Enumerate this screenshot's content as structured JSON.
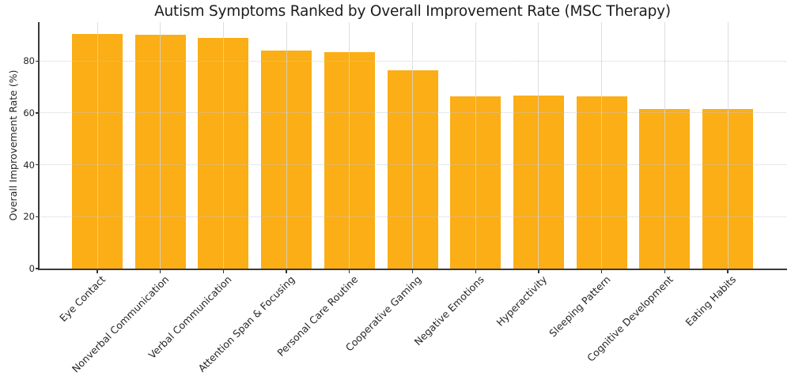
{
  "title": "Autism Symptoms Ranked by Overall Improvement Rate (MSC Therapy)",
  "y_axis_label": "Overall Improvement Rate (%)",
  "colors": {
    "bar": "#fbae15",
    "spine": "#3a3a3a",
    "grid_horizontal": "#c9c9c9",
    "grid_vertical": "#d6d6d6",
    "title_text": "#1c1c1c",
    "tick_text": "#262626",
    "background": "#ffffff"
  },
  "chart_data": {
    "type": "bar",
    "title": "Autism Symptoms Ranked by Overall Improvement Rate (MSC Therapy)",
    "xlabel": "",
    "ylabel": "Overall Improvement Rate (%)",
    "categories": [
      "Eye Contact",
      "Nonverbal Communication",
      "Verbal Communication",
      "Attention Span & Focusing",
      "Personal Care Routine",
      "Cooperative Gaming",
      "Negative Emotions",
      "Hyperactivity",
      "Sleeping Pattern",
      "Cognitive Development",
      "Eating Habits"
    ],
    "values": [
      90.5,
      90.0,
      88.9,
      84.0,
      83.3,
      76.5,
      66.5,
      66.7,
      66.5,
      61.5,
      61.5
    ],
    "ylim": [
      0,
      95
    ],
    "yticks": [
      0,
      20,
      40,
      60,
      80
    ],
    "grid": true,
    "legend": false,
    "bar_color": "#fbae15",
    "x_tick_rotation_deg": 45
  }
}
